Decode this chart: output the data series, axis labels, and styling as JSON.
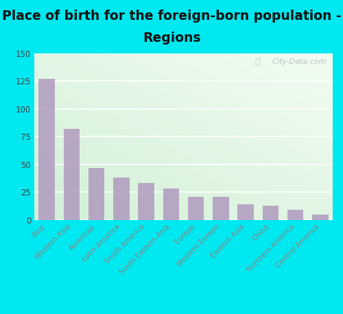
{
  "categories": [
    "Asia",
    "Western Asia",
    "Americas",
    "Latin America",
    "South America",
    "South Eastern Asia",
    "Europe",
    "Western Europe",
    "Eastern Asia",
    "China",
    "Northern America",
    "Central America"
  ],
  "values": [
    127,
    82,
    47,
    38,
    33,
    28,
    21,
    21,
    14,
    13,
    9,
    5
  ],
  "bar_color": "#b09abe",
  "title_line1": "Place of birth for the foreign-born population -",
  "title_line2": "Regions",
  "ylim": [
    0,
    150
  ],
  "yticks": [
    0,
    25,
    50,
    75,
    100,
    125,
    150
  ],
  "outer_bg": "#00e8f0",
  "title_fontsize": 13.5,
  "watermark": "City-Data.com",
  "bg_gradient_topleft": "#d6edd8",
  "bg_gradient_topright": "#f0f8f0",
  "bg_gradient_bottom": "#e8f5e8"
}
